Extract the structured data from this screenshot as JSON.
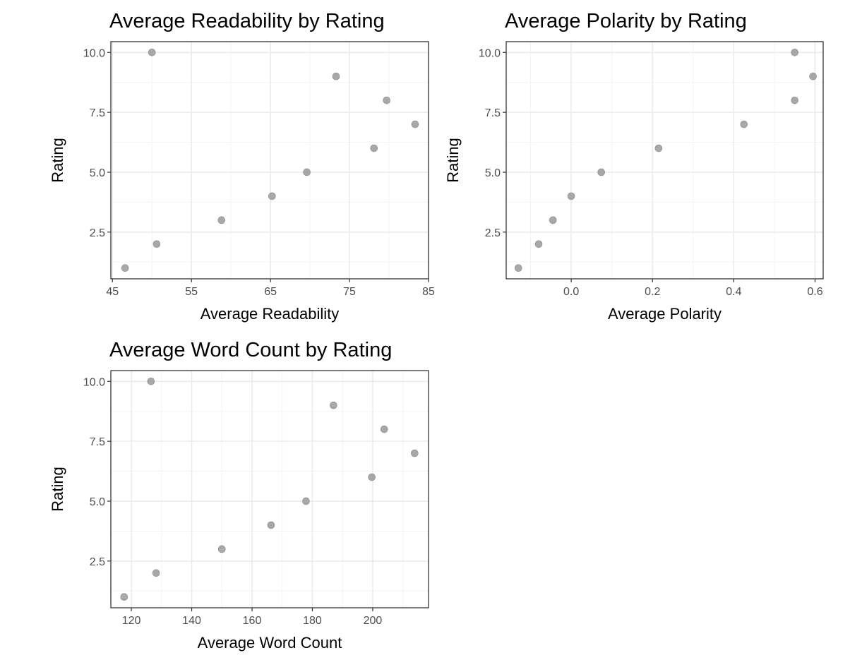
{
  "chart_data": [
    {
      "type": "scatter",
      "title": "Average Readability by Rating",
      "xlabel": "Average Readability",
      "ylabel": "Rating",
      "xlim": [
        44.8,
        85.0
      ],
      "ylim": [
        0.55,
        10.45
      ],
      "xticks": [
        45,
        55,
        65,
        75,
        85
      ],
      "xtick_labels": [
        "45",
        "55",
        "65",
        "75",
        "85"
      ],
      "yticks": [
        2.5,
        5.0,
        7.5,
        10.0
      ],
      "ytick_labels": [
        "2.5",
        "5.0",
        "7.5",
        "10.0"
      ],
      "grid": true,
      "x": [
        46.6,
        50.6,
        58.8,
        65.2,
        69.6,
        78.1,
        83.3,
        79.7,
        73.3,
        50.0
      ],
      "y": [
        1,
        2,
        3,
        4,
        5,
        6,
        7,
        8,
        9,
        10
      ]
    },
    {
      "type": "scatter",
      "title": "Average Polarity by Rating",
      "xlabel": "Average Polarity",
      "ylabel": "Rating",
      "xlim": [
        -0.16,
        0.62
      ],
      "ylim": [
        0.55,
        10.45
      ],
      "xticks": [
        0.0,
        0.2,
        0.4,
        0.6
      ],
      "xtick_labels": [
        "0.0",
        "0.2",
        "0.4",
        "0.6"
      ],
      "yticks": [
        2.5,
        5.0,
        7.5,
        10.0
      ],
      "ytick_labels": [
        "2.5",
        "5.0",
        "7.5",
        "10.0"
      ],
      "grid": true,
      "x": [
        -0.13,
        -0.08,
        -0.045,
        0.0,
        0.074,
        0.215,
        0.425,
        0.55,
        0.595,
        0.55
      ],
      "y": [
        1,
        2,
        3,
        4,
        5,
        6,
        7,
        8,
        9,
        10
      ]
    },
    {
      "type": "scatter",
      "title": "Average Word Count by Rating",
      "xlabel": "Average Word Count",
      "ylabel": "Rating",
      "xlim": [
        113.2,
        218.5
      ],
      "ylim": [
        0.55,
        10.45
      ],
      "xticks": [
        120,
        140,
        160,
        180,
        200
      ],
      "xtick_labels": [
        "120",
        "140",
        "160",
        "180",
        "200"
      ],
      "yticks": [
        2.5,
        5.0,
        7.5,
        10.0
      ],
      "ytick_labels": [
        "2.5",
        "5.0",
        "7.5",
        "10.0"
      ],
      "grid": true,
      "x": [
        117.6,
        128.2,
        150.0,
        166.3,
        177.9,
        199.7,
        213.9,
        203.8,
        187.0,
        126.5
      ],
      "y": [
        1,
        2,
        3,
        4,
        5,
        6,
        7,
        8,
        9,
        10
      ]
    }
  ]
}
